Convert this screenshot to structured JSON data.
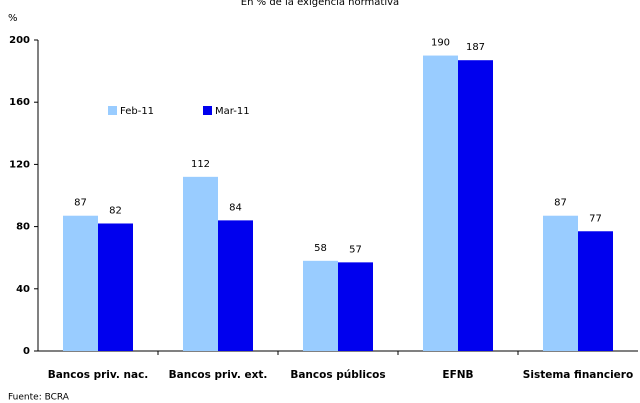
{
  "chart_data": {
    "type": "bar",
    "title": "En % de la exigencia normativa",
    "y_label": "%",
    "source": "Fuente: BCRA",
    "categories": [
      "Bancos priv. nac.",
      "Bancos priv. ext.",
      "Bancos públicos",
      "EFNB",
      "Sistema financiero"
    ],
    "series": [
      {
        "name": "Feb-11",
        "color": "#99ccff",
        "values": [
          87,
          112,
          58,
          190,
          87
        ]
      },
      {
        "name": "Mar-11",
        "color": "#0000ee",
        "values": [
          82,
          84,
          57,
          187,
          77
        ]
      }
    ],
    "ylim": [
      0,
      200
    ],
    "yticks": [
      0,
      40,
      80,
      120,
      160,
      200
    ],
    "grid": false
  }
}
